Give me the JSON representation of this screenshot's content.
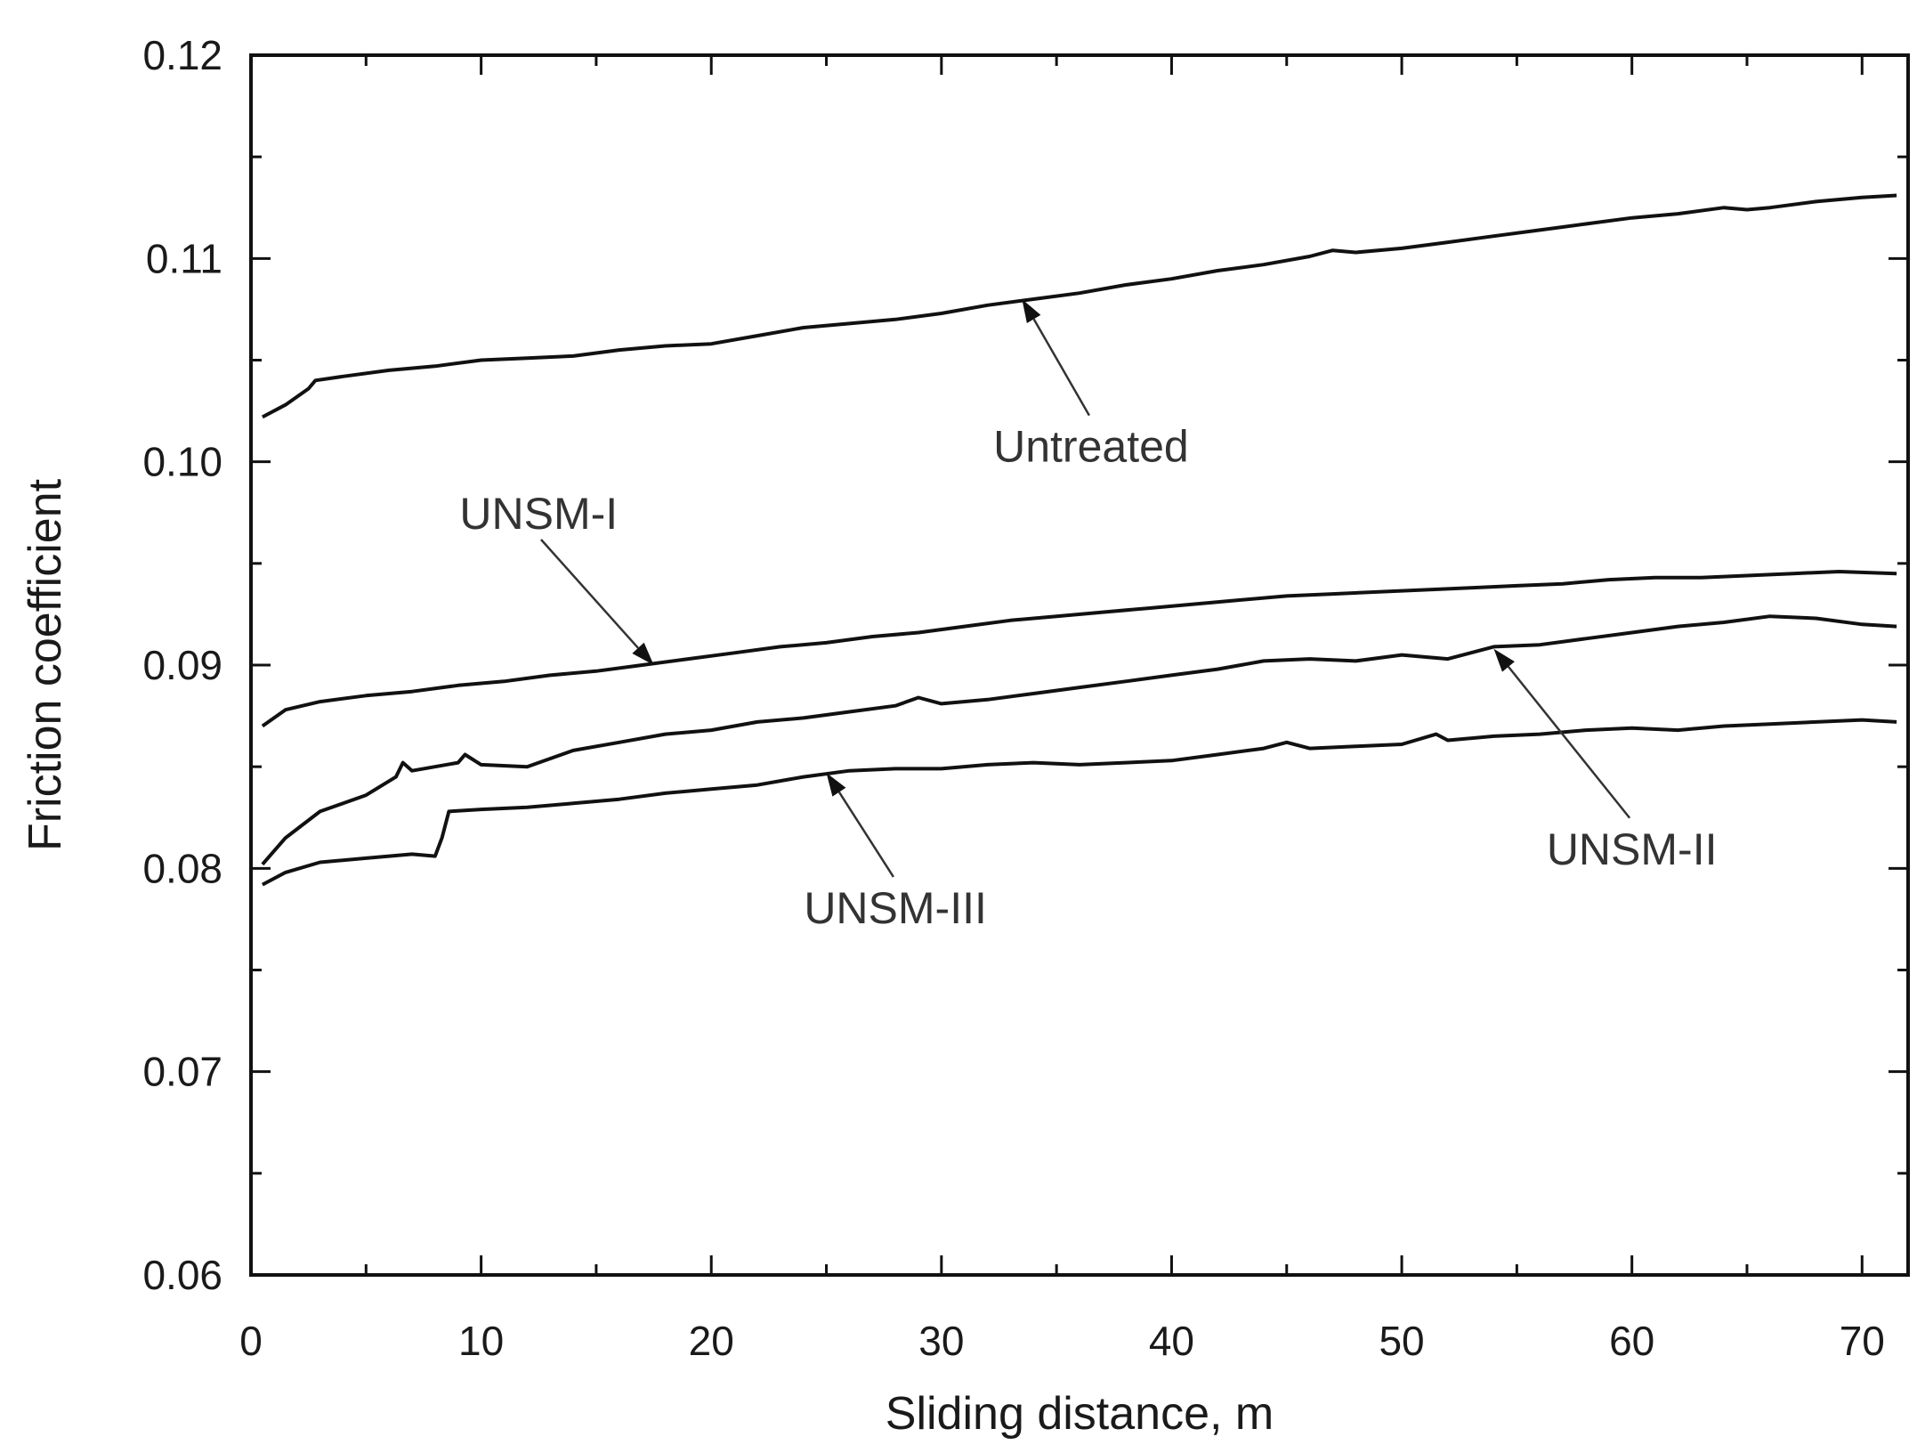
{
  "chart_data": {
    "type": "line",
    "title": "",
    "xlabel": "Sliding distance, m",
    "ylabel": "Friction coefficient",
    "xlim": [
      0,
      72
    ],
    "ylim": [
      0.06,
      0.12
    ],
    "xticks": [
      "0",
      "10",
      "20",
      "30",
      "40",
      "50",
      "60",
      "70"
    ],
    "yticks": [
      "0.06",
      "0.07",
      "0.08",
      "0.09",
      "0.10",
      "0.11",
      "0.12"
    ],
    "grid": false,
    "series": [
      {
        "name": "Untreated",
        "x": [
          0.5,
          1.5,
          2.5,
          2.8,
          4,
          6,
          8,
          10,
          12,
          14,
          16,
          18,
          20,
          22,
          24,
          26,
          28,
          30,
          32,
          34,
          36,
          38,
          40,
          42,
          44,
          46,
          47,
          48,
          50,
          52,
          54,
          56,
          58,
          60,
          62,
          64,
          65,
          66,
          68,
          70,
          71.5
        ],
        "y": [
          0.1022,
          0.1028,
          0.1036,
          0.104,
          0.1042,
          0.1045,
          0.1047,
          0.105,
          0.1051,
          0.1052,
          0.1055,
          0.1057,
          0.1058,
          0.1062,
          0.1066,
          0.1068,
          0.107,
          0.1073,
          0.1077,
          0.108,
          0.1083,
          0.1087,
          0.109,
          0.1094,
          0.1097,
          0.1101,
          0.1104,
          0.1103,
          0.1105,
          0.1108,
          0.1111,
          0.1114,
          0.1117,
          0.112,
          0.1122,
          0.1125,
          0.1124,
          0.1125,
          0.1128,
          0.113,
          0.1131
        ]
      },
      {
        "name": "UNSM-I",
        "x": [
          0.5,
          1.5,
          3,
          5,
          7,
          9,
          11,
          13,
          15,
          17,
          19,
          21,
          23,
          25,
          27,
          29,
          31,
          33,
          35,
          37,
          39,
          41,
          43,
          45,
          47,
          49,
          51,
          53,
          55,
          57,
          59,
          61,
          63,
          65,
          67,
          69,
          71.5
        ],
        "y": [
          0.087,
          0.0878,
          0.0882,
          0.0885,
          0.0887,
          0.089,
          0.0892,
          0.0895,
          0.0897,
          0.09,
          0.0903,
          0.0906,
          0.0909,
          0.0911,
          0.0914,
          0.0916,
          0.0919,
          0.0922,
          0.0924,
          0.0926,
          0.0928,
          0.093,
          0.0932,
          0.0934,
          0.0935,
          0.0936,
          0.0937,
          0.0938,
          0.0939,
          0.094,
          0.0942,
          0.0943,
          0.0943,
          0.0944,
          0.0945,
          0.0946,
          0.0945
        ]
      },
      {
        "name": "UNSM-II",
        "x": [
          0.5,
          1.5,
          3,
          5,
          6.3,
          6.6,
          7,
          9,
          9.3,
          10,
          12,
          14,
          16,
          18,
          20,
          22,
          24,
          26,
          28,
          29,
          30,
          32,
          34,
          36,
          38,
          40,
          42,
          44,
          46,
          48,
          50,
          52,
          54,
          56,
          58,
          60,
          62,
          64,
          66,
          68,
          70,
          71.5
        ],
        "y": [
          0.0802,
          0.0815,
          0.0828,
          0.0836,
          0.0845,
          0.0852,
          0.0848,
          0.0852,
          0.0856,
          0.0851,
          0.085,
          0.0858,
          0.0862,
          0.0866,
          0.0868,
          0.0872,
          0.0874,
          0.0877,
          0.088,
          0.0884,
          0.0881,
          0.0883,
          0.0886,
          0.0889,
          0.0892,
          0.0895,
          0.0898,
          0.0902,
          0.0903,
          0.0902,
          0.0905,
          0.0903,
          0.0909,
          0.091,
          0.0913,
          0.0916,
          0.0919,
          0.0921,
          0.0924,
          0.0923,
          0.092,
          0.0919
        ]
      },
      {
        "name": "UNSM-III",
        "x": [
          0.5,
          1.5,
          3,
          5,
          7,
          8,
          8.3,
          8.6,
          10,
          12,
          14,
          16,
          18,
          20,
          22,
          24,
          26,
          28,
          30,
          32,
          34,
          36,
          38,
          40,
          42,
          44,
          45,
          46,
          48,
          50,
          51.5,
          52,
          54,
          56,
          58,
          60,
          62,
          64,
          66,
          68,
          70,
          71.5
        ],
        "y": [
          0.0792,
          0.0798,
          0.0803,
          0.0805,
          0.0807,
          0.0806,
          0.0815,
          0.0828,
          0.0829,
          0.083,
          0.0832,
          0.0834,
          0.0837,
          0.0839,
          0.0841,
          0.0845,
          0.0848,
          0.0849,
          0.0849,
          0.0851,
          0.0852,
          0.0851,
          0.0852,
          0.0853,
          0.0856,
          0.0859,
          0.0862,
          0.0859,
          0.086,
          0.0861,
          0.0866,
          0.0863,
          0.0865,
          0.0866,
          0.0868,
          0.0869,
          0.0868,
          0.087,
          0.0871,
          0.0872,
          0.0873,
          0.0872
        ]
      }
    ],
    "annotations": [
      {
        "text": "Untreated",
        "x": 36.5,
        "y": 0.1,
        "arrow_to": [
          33.5,
          0.108
        ]
      },
      {
        "text": "UNSM-I",
        "x": 12.5,
        "y": 0.0967,
        "arrow_to": [
          17.5,
          0.09
        ]
      },
      {
        "text": "UNSM-II",
        "x": 60,
        "y": 0.0802,
        "arrow_to": [
          54,
          0.0908
        ]
      },
      {
        "text": "UNSM-III",
        "x": 28,
        "y": 0.0773,
        "arrow_to": [
          25,
          0.0847
        ]
      }
    ]
  }
}
